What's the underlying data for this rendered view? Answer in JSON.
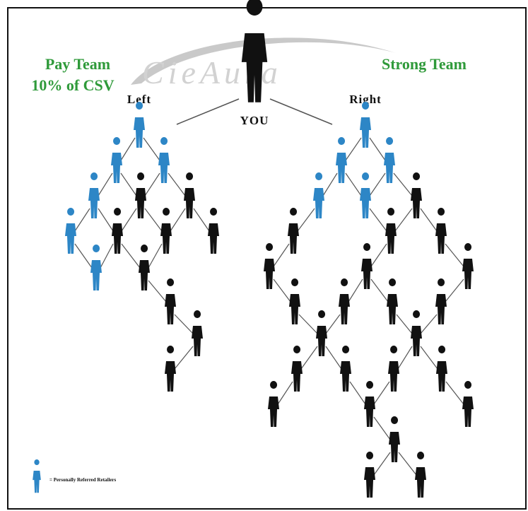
{
  "logo": "CieAura",
  "left_team": {
    "title": "Pay Team",
    "subtitle": "10% of CSV",
    "leg": "Left"
  },
  "right_team": {
    "title": "Strong Team",
    "leg": "Right"
  },
  "root": "YOU",
  "legend": {
    "text": "= Personally Referred Retailers"
  }
}
